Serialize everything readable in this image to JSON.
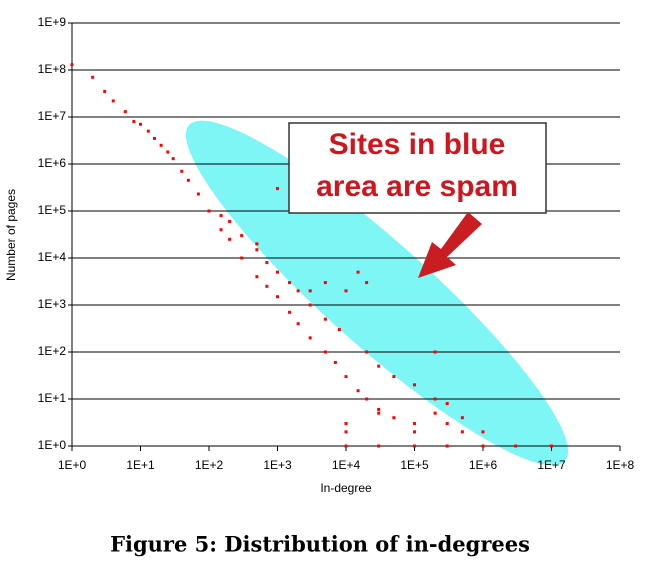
{
  "chart_data": {
    "type": "scatter",
    "x_label": "In-degree",
    "y_label": "Number of pages",
    "caption": "Figure 5: Distribution of in-degrees",
    "annotation": [
      "Sites in blue",
      "area are spam"
    ],
    "log_x": true,
    "log_y": true,
    "grid": true,
    "color": "#ff0000",
    "xlim": [
      1,
      100000000.0
    ],
    "ylim": [
      1,
      1000000000.0
    ],
    "xticks": [
      {
        "value": 1,
        "label": "1E+0"
      },
      {
        "value": 10,
        "label": "1E+1"
      },
      {
        "value": 100,
        "label": "1E+2"
      },
      {
        "value": 1000,
        "label": "1E+3"
      },
      {
        "value": 10000,
        "label": "1E+4"
      },
      {
        "value": 100000,
        "label": "1E+5"
      },
      {
        "value": 1000000,
        "label": "1E+6"
      },
      {
        "value": 10000000,
        "label": "1E+7"
      },
      {
        "value": 100000000,
        "label": "1E+8"
      }
    ],
    "yticks": [
      {
        "value": 1,
        "label": "1E+0"
      },
      {
        "value": 10,
        "label": "1E+1"
      },
      {
        "value": 100,
        "label": "1E+2"
      },
      {
        "value": 1000,
        "label": "1E+3"
      },
      {
        "value": 10000,
        "label": "1E+4"
      },
      {
        "value": 100000,
        "label": "1E+5"
      },
      {
        "value": 1000000,
        "label": "1E+6"
      },
      {
        "value": 10000000,
        "label": "1E+7"
      },
      {
        "value": 100000000,
        "label": "1E+8"
      },
      {
        "value": 1000000000,
        "label": "1E+9"
      }
    ],
    "x": [
      1,
      2,
      3,
      4,
      6,
      8,
      10,
      13,
      16,
      20,
      25,
      30,
      40,
      50,
      70,
      100,
      150,
      200,
      300,
      500,
      700,
      1000,
      1500,
      2000,
      3000,
      5000,
      7000,
      10000,
      15000,
      20000,
      30000,
      50000,
      100000,
      150,
      200,
      300,
      500,
      500,
      700,
      1000,
      1000,
      1500,
      2000,
      3000,
      3000,
      5000,
      5000,
      8000,
      10000,
      15000,
      20000,
      20000,
      30000,
      50000,
      100000,
      200000,
      200000,
      300000,
      500000,
      10000,
      30000,
      100000,
      300000,
      1000000,
      3000000,
      10000000,
      10000,
      100000,
      500000,
      10000,
      300000,
      30000,
      200000,
      1000000
    ],
    "values": [
      130000000,
      70000000,
      35000000,
      22000000,
      13000000,
      8000000,
      7000000,
      5000000,
      3500000,
      2500000,
      1800000,
      1300000,
      700000,
      450000,
      230000,
      100000,
      40000,
      25000,
      10000,
      4000,
      2500,
      1500,
      700,
      400,
      200,
      100,
      60,
      30,
      15,
      10,
      6,
      4,
      3,
      80000,
      60000,
      30000,
      15000,
      20000,
      8000,
      300000,
      5000,
      3000,
      2000,
      1000,
      2000,
      500,
      3000,
      300,
      2000,
      5000,
      3000,
      100,
      50,
      30,
      20,
      100,
      10,
      8,
      4,
      1,
      1,
      1,
      1,
      1,
      1,
      1,
      2,
      2,
      2,
      3,
      3,
      5,
      5,
      2
    ]
  }
}
